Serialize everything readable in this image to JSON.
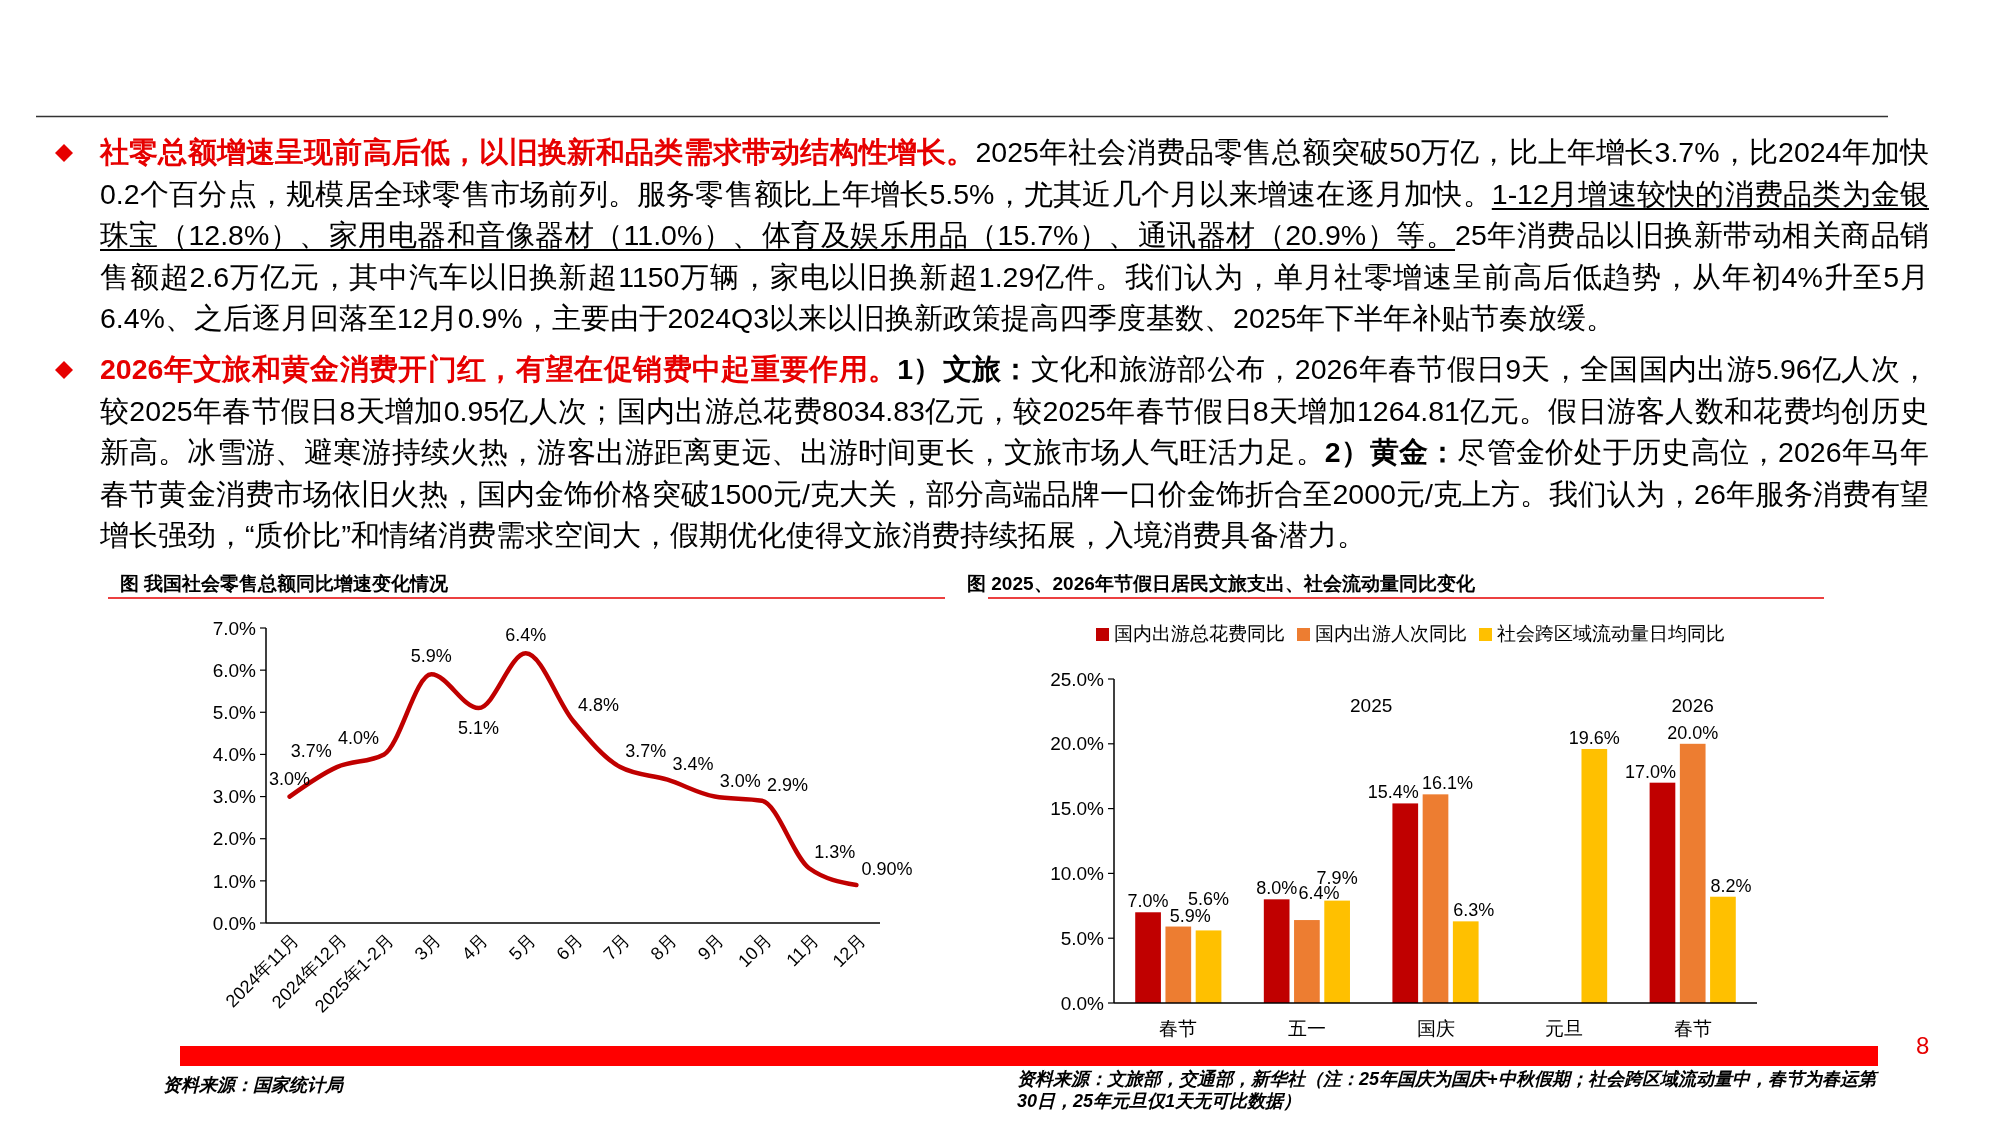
{
  "chart_data": [
    {
      "type": "other",
      "annotations": [
        "社零总额增速呈现前高后低，以旧换新和品类需求带动结构性增长。",
        "2025年社会消费品零售总额突破50万亿，比上年增长3.7%，比2024年加快0.2个百分点，规模居全球零售市场前列。服务零售额比上年增长5.5%，尤其近几个月以来增速在逐月加快。",
        "1-12月增速较快的消费品类为金银珠宝（12.8%）、家用电器和音像器材（11.0%）、体育及娱乐用品（15.7%）、通讯器材（20.9%）等。",
        "25年消费品以旧换新带动相关商品销售额超2.6万亿元，其中汽车以旧换新超1150万辆，家电以旧换新超1.29亿件。我们认为，单月社零增速呈前高后低趋势，从年初4%升至5月6.4%、之后逐月回落至12月0.9%，主要由于2024Q3以来以旧换新政策提高四季度基数、2025年下半年补贴节奏放缓。",
        "2026年文旅和黄金消费开门红，有望在促销费中起重要作用。",
        "1）文旅：",
        "文化和旅游部公布，2026年春节假日9天，全国国内出游5.96亿人次，较2025年春节假日8天增加0.95亿人次；国内出游总花费8034.83亿元，较2025年春节假日8天增加1264.81亿元。假日游客人数和花费均创历史新高。冰雪游、避寒游持续火热，游客出游距离更远、出游时间更长，文旅市场人气旺活力足。",
        "2）黄金：",
        "尽管金价处于历史高位，2026年马年春节黄金消费市场依旧火热，国内金饰价格突破1500元/克大关，部分高端品牌一口价金饰折合至2000元/克上方。我们认为，26年服务消费有望增长强劲，“质价比”和情绪消费需求空间大，假期优化使得文旅消费持续拓展，入境消费具备潜力。",
        "8"
      ]
    },
    {
      "type": "line",
      "title": "图 我国社会零售总额同比增速变化情况",
      "categories": [
        "2024年11月",
        "2024年12月",
        "2025年1-2月",
        "3月",
        "4月",
        "5月",
        "6月",
        "7月",
        "8月",
        "9月",
        "10月",
        "11月",
        "12月"
      ],
      "values": [
        3.0,
        3.7,
        4.0,
        5.9,
        5.1,
        6.4,
        4.8,
        3.7,
        3.4,
        3.0,
        2.9,
        1.3,
        0.9
      ],
      "value_labels": [
        "3.0%",
        "3.7%",
        "4.0%",
        "5.9%",
        "5.1%",
        "6.4%",
        "4.8%",
        "3.7%",
        "3.4%",
        "3.0%",
        "2.9%",
        "1.3%",
        "0.90%"
      ],
      "color": "#c00000",
      "ylim": [
        0,
        7
      ],
      "yticks": [
        {
          "value": 0,
          "label": "0.0%"
        },
        {
          "value": 1,
          "label": "1.0%"
        },
        {
          "value": 2,
          "label": "2.0%"
        },
        {
          "value": 3,
          "label": "3.0%"
        },
        {
          "value": 4,
          "label": "4.0%"
        },
        {
          "value": 5,
          "label": "5.0%"
        },
        {
          "value": 6,
          "label": "6.0%"
        },
        {
          "value": 7,
          "label": "7.0%"
        }
      ],
      "annotations": [
        "资料来源：国家统计局"
      ]
    },
    {
      "type": "bar",
      "title": "图 2025、2026年节假日居民文旅支出、社会流动量同比变化",
      "categories": [
        "春节",
        "五一",
        "国庆",
        "元旦",
        "春节"
      ],
      "series": [
        {
          "name": "国内出游总花费同比",
          "color": "#c00000",
          "values": [
            7.0,
            8.0,
            15.4,
            null,
            17.0
          ],
          "value_labels": [
            "7.0%",
            "8.0%",
            "15.4%",
            null,
            "17.0%"
          ]
        },
        {
          "name": "国内出游人次同比",
          "color": "#ed7d31",
          "values": [
            5.9,
            6.4,
            16.1,
            null,
            20.0
          ],
          "value_labels": [
            "5.9%",
            "6.4%",
            "16.1%",
            null,
            "20.0%"
          ]
        },
        {
          "name": "社会跨区域流动量日均同比",
          "color": "#ffc000",
          "values": [
            5.6,
            7.9,
            6.3,
            19.6,
            8.2
          ],
          "value_labels": [
            "5.6%",
            "7.9%",
            "6.3%",
            "19.6%",
            "8.2%"
          ]
        }
      ],
      "ylim": [
        0,
        25
      ],
      "yticks": [
        {
          "value": 0,
          "label": "0.0%"
        },
        {
          "value": 5,
          "label": "5.0%"
        },
        {
          "value": 10,
          "label": "10.0%"
        },
        {
          "value": 15,
          "label": "15.0%"
        },
        {
          "value": 20,
          "label": "20.0%"
        },
        {
          "value": 25,
          "label": "25.0%"
        }
      ],
      "legend": "top",
      "annotations": [
        "2025",
        "2026",
        "资料来源：文旅部，交通部，新华社（注：25年国庆为国庆+中秋假期；社会跨区域流动量中，春节为春运第30日，25年元旦仅1天无可比数据）"
      ]
    }
  ]
}
